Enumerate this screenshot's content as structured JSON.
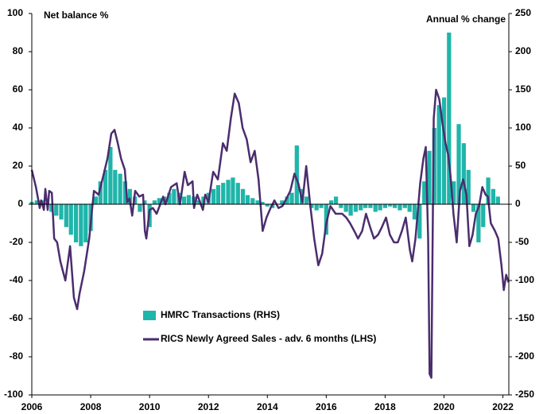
{
  "chart_data": {
    "type": "combo",
    "ylabel": "Net balance %",
    "y2label": "Annual % change",
    "xlim": [
      2006,
      2022.2
    ],
    "xticks": [
      2006,
      2008,
      2010,
      2012,
      2014,
      2016,
      2018,
      2020,
      2022
    ],
    "ylim": [
      -100,
      100
    ],
    "yticks": [
      -100,
      -80,
      -60,
      -40,
      -20,
      0,
      20,
      40,
      60,
      80,
      100
    ],
    "y2lim": [
      -250,
      250
    ],
    "y2ticks": [
      -250,
      -200,
      -150,
      -100,
      -50,
      0,
      50,
      100,
      150,
      200,
      250
    ],
    "legend": "lower center",
    "series": [
      {
        "name": "HMRC Transactions (RHS)",
        "type": "bar",
        "axis": "y2",
        "color": "#1fb5aa",
        "x": [
          2006.0,
          2006.17,
          2006.33,
          2006.5,
          2006.67,
          2006.83,
          2007.0,
          2007.17,
          2007.33,
          2007.5,
          2007.67,
          2007.83,
          2008.0,
          2008.17,
          2008.33,
          2008.5,
          2008.67,
          2008.83,
          2009.0,
          2009.17,
          2009.33,
          2009.5,
          2009.67,
          2009.83,
          2010.0,
          2010.17,
          2010.33,
          2010.5,
          2010.67,
          2010.83,
          2011.0,
          2011.17,
          2011.33,
          2011.5,
          2011.67,
          2011.83,
          2012.0,
          2012.17,
          2012.33,
          2012.5,
          2012.67,
          2012.83,
          2013.0,
          2013.17,
          2013.33,
          2013.5,
          2013.67,
          2013.83,
          2014.0,
          2014.17,
          2014.33,
          2014.5,
          2014.67,
          2014.83,
          2015.0,
          2015.17,
          2015.33,
          2015.5,
          2015.67,
          2015.83,
          2016.0,
          2016.17,
          2016.33,
          2016.5,
          2016.67,
          2016.83,
          2017.0,
          2017.17,
          2017.33,
          2017.5,
          2017.67,
          2017.83,
          2018.0,
          2018.17,
          2018.33,
          2018.5,
          2018.67,
          2018.83,
          2019.0,
          2019.17,
          2019.33,
          2019.5,
          2019.67,
          2019.83,
          2020.0,
          2020.17,
          2020.33,
          2020.5,
          2020.67,
          2020.83,
          2021.0,
          2021.17,
          2021.33,
          2021.5,
          2021.67,
          2021.83
        ],
        "values": [
          3,
          5,
          5,
          2,
          -10,
          -15,
          -20,
          -30,
          -40,
          -50,
          -55,
          -50,
          -35,
          10,
          30,
          45,
          75,
          45,
          40,
          30,
          20,
          10,
          -10,
          5,
          -30,
          5,
          8,
          10,
          15,
          20,
          15,
          10,
          12,
          10,
          5,
          10,
          15,
          20,
          25,
          28,
          32,
          35,
          28,
          20,
          12,
          8,
          5,
          3,
          -3,
          -5,
          0,
          5,
          10,
          15,
          77,
          20,
          10,
          -5,
          -8,
          -5,
          -40,
          5,
          10,
          -5,
          -10,
          -15,
          -10,
          -8,
          -5,
          -5,
          -10,
          -8,
          -5,
          -3,
          -5,
          -8,
          -5,
          -10,
          -20,
          -45,
          30,
          70,
          100,
          130,
          140,
          225,
          30,
          105,
          80,
          45,
          -10,
          -50,
          -30,
          35,
          20,
          10
        ]
      },
      {
        "name": "RICS Newly Agreed Sales - adv. 6 months (LHS)",
        "type": "line",
        "color": "#4b2d6e",
        "x": [
          2006.0,
          2006.14,
          2006.27,
          2006.32,
          2006.41,
          2006.46,
          2006.54,
          2006.59,
          2006.68,
          2006.76,
          2006.86,
          2006.97,
          2007.14,
          2007.3,
          2007.43,
          2007.54,
          2007.62,
          2007.78,
          2007.95,
          2008.11,
          2008.27,
          2008.43,
          2008.57,
          2008.7,
          2008.81,
          2008.92,
          2009.03,
          2009.16,
          2009.24,
          2009.32,
          2009.41,
          2009.51,
          2009.65,
          2009.78,
          2009.84,
          2009.89,
          2010.0,
          2010.11,
          2010.24,
          2010.46,
          2010.54,
          2010.73,
          2010.92,
          2011.03,
          2011.08,
          2011.19,
          2011.3,
          2011.46,
          2011.51,
          2011.62,
          2011.81,
          2011.89,
          2012.0,
          2012.16,
          2012.32,
          2012.49,
          2012.62,
          2012.76,
          2012.89,
          2013.03,
          2013.16,
          2013.3,
          2013.43,
          2013.57,
          2013.7,
          2013.84,
          2013.97,
          2014.11,
          2014.24,
          2014.38,
          2014.51,
          2014.65,
          2014.78,
          2014.92,
          2015.05,
          2015.19,
          2015.32,
          2015.46,
          2015.59,
          2015.73,
          2015.86,
          2016.0,
          2016.14,
          2016.32,
          2016.54,
          2016.68,
          2016.81,
          2016.95,
          2017.08,
          2017.22,
          2017.35,
          2017.49,
          2017.62,
          2017.76,
          2017.89,
          2018.03,
          2018.16,
          2018.3,
          2018.43,
          2018.57,
          2018.7,
          2018.84,
          2018.92,
          2019.03,
          2019.19,
          2019.3,
          2019.38,
          2019.46,
          2019.51,
          2019.57,
          2019.65,
          2019.73,
          2019.84,
          2019.95,
          2020.05,
          2020.14,
          2020.22,
          2020.32,
          2020.43,
          2020.54,
          2020.65,
          2020.76,
          2020.86,
          2020.97,
          2021.08,
          2021.19,
          2021.3,
          2021.41,
          2021.49,
          2021.59,
          2021.73,
          2021.84,
          2021.95,
          2022.03,
          2022.11,
          2022.19
        ],
        "values": [
          18,
          9,
          -2,
          2,
          -3,
          8,
          -3,
          7,
          6,
          -18,
          -20,
          -30,
          -40,
          -22,
          -49,
          -55,
          -47,
          -35,
          -18,
          7,
          5,
          15,
          24,
          37,
          39,
          32,
          24,
          18,
          1,
          3,
          -6,
          7,
          4,
          5,
          -14,
          -18,
          -3,
          -2,
          -5,
          4,
          0,
          9,
          11,
          0,
          5,
          17,
          10,
          12,
          -2,
          5,
          -3,
          5,
          1,
          17,
          13,
          32,
          28,
          45,
          58,
          53,
          40,
          34,
          22,
          28,
          13,
          -14,
          -7,
          -2,
          2,
          -2,
          -1,
          3,
          7,
          16,
          11,
          1,
          20,
          -1,
          -18,
          -32,
          -26,
          -10,
          -1,
          -5,
          -5,
          -7,
          -10,
          -14,
          -18,
          -14,
          -5,
          -12,
          -18,
          -16,
          -12,
          -7,
          -16,
          -20,
          -20,
          -14,
          -7,
          -24,
          -30,
          -18,
          11,
          24,
          30,
          -18,
          -89,
          -91,
          45,
          60,
          55,
          42,
          32,
          26,
          15,
          -5,
          -20,
          7,
          13,
          5,
          -22,
          -16,
          -5,
          -1,
          9,
          5,
          4,
          -10,
          -14,
          -18,
          -32,
          -45,
          -37,
          -41
        ]
      }
    ]
  }
}
